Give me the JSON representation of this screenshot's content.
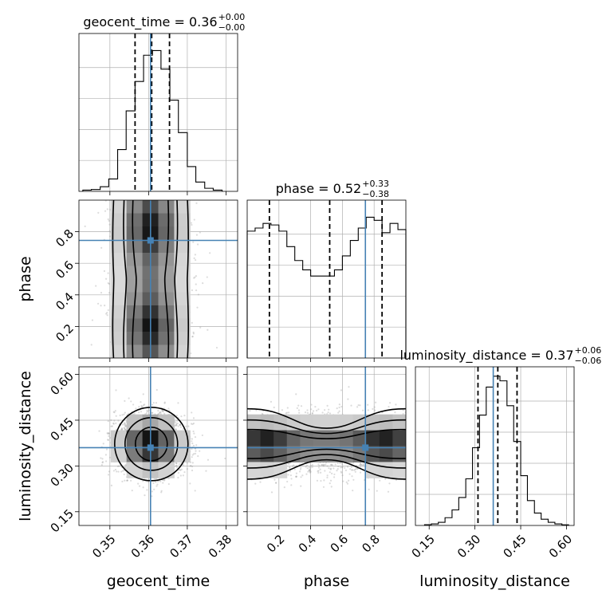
{
  "chart_data": [
    {
      "type": "histogram",
      "panel": "geocent_time-1d",
      "title_parts": {
        "name": "geocent_time",
        "value": "0.36",
        "plus": "+0.00",
        "minus": "−0.00"
      },
      "xlim": [
        0.342,
        0.383
      ],
      "bins": [
        0.343,
        0.3452,
        0.3475,
        0.3497,
        0.352,
        0.3542,
        0.3565,
        0.3587,
        0.361,
        0.3632,
        0.3655,
        0.3677,
        0.37,
        0.3722,
        0.3745,
        0.3767,
        0.379
      ],
      "counts": [
        0.8,
        1.2,
        3.0,
        8.0,
        27.0,
        52.0,
        71.0,
        88.0,
        91.0,
        79.0,
        59.0,
        38.0,
        16.0,
        6.0,
        2.0,
        0.8
      ],
      "ymax": 100,
      "quantiles": [
        0.3565,
        0.3608,
        0.3654
      ],
      "truth": 0.3605
    },
    {
      "type": "histogram",
      "panel": "phase-1d",
      "title_parts": {
        "name": "phase",
        "value": "0.52",
        "plus": "+0.33",
        "minus": "−0.38"
      },
      "xlim": [
        0.0,
        1.0
      ],
      "bins": [
        0.0,
        0.05,
        0.1,
        0.15,
        0.2,
        0.25,
        0.3,
        0.35,
        0.4,
        0.45,
        0.5,
        0.55,
        0.6,
        0.65,
        0.7,
        0.75,
        0.8,
        0.85,
        0.9,
        0.95,
        1.0
      ],
      "counts": [
        82,
        84,
        87,
        86,
        82,
        72,
        63,
        57,
        53,
        53,
        53,
        57,
        66,
        76,
        84,
        91,
        89,
        81,
        87,
        83
      ],
      "ymax": 100,
      "quantiles": [
        0.14,
        0.52,
        0.85
      ],
      "truth": 0.745
    },
    {
      "type": "histogram",
      "panel": "luminosity_distance-1d",
      "title_parts": {
        "name": "luminosity_distance",
        "value": "0.37",
        "plus": "+0.06",
        "minus": "−0.06"
      },
      "xlim": [
        0.105,
        0.625
      ],
      "bins": [
        0.135,
        0.157,
        0.18,
        0.202,
        0.225,
        0.247,
        0.27,
        0.292,
        0.315,
        0.337,
        0.36,
        0.382,
        0.405,
        0.427,
        0.45,
        0.472,
        0.495,
        0.517,
        0.54,
        0.562,
        0.585,
        0.607
      ],
      "counts": [
        0.5,
        1.0,
        2.0,
        5.0,
        10.0,
        18.0,
        30.0,
        50.0,
        71.0,
        89.0,
        96.0,
        93.0,
        77.0,
        54.0,
        32.0,
        16.0,
        8.0,
        4.0,
        2.0,
        1.0,
        0.4
      ],
      "ymax": 100,
      "quantiles": [
        0.31,
        0.375,
        0.438
      ],
      "truth": 0.36
    },
    {
      "type": "contour",
      "panel": "geocent_time-vs-phase",
      "xlim": [
        0.342,
        0.383
      ],
      "ylim": [
        0.0,
        1.0
      ],
      "truth": [
        0.3605,
        0.745
      ]
    },
    {
      "type": "contour",
      "panel": "geocent_time-vs-luminosity_distance",
      "xlim": [
        0.342,
        0.383
      ],
      "ylim": [
        0.105,
        0.625
      ],
      "truth": [
        0.3605,
        0.36
      ]
    },
    {
      "type": "contour",
      "panel": "phase-vs-luminosity_distance",
      "xlim": [
        0.0,
        1.0
      ],
      "ylim": [
        0.105,
        0.625
      ],
      "truth": [
        0.745,
        0.36
      ]
    }
  ],
  "axes": {
    "geocent_time": {
      "label": "geocent_time",
      "ticks": [
        0.35,
        0.36,
        0.37,
        0.38
      ],
      "tick_labels": [
        "0.35",
        "0.36",
        "0.37",
        "0.38"
      ]
    },
    "phase": {
      "label": "phase",
      "ticks": [
        0.2,
        0.4,
        0.6,
        0.8
      ],
      "tick_labels": [
        "0.2",
        "0.4",
        "0.6",
        "0.8"
      ]
    },
    "luminosity_distance": {
      "label": "luminosity_distance",
      "ticks": [
        0.15,
        0.3,
        0.45,
        0.6
      ],
      "tick_labels": [
        "0.15",
        "0.30",
        "0.45",
        "0.60"
      ]
    }
  },
  "style": {
    "truth_color": "#4682b4",
    "line_color": "#000000",
    "grid_color": "#b0b0b0"
  }
}
